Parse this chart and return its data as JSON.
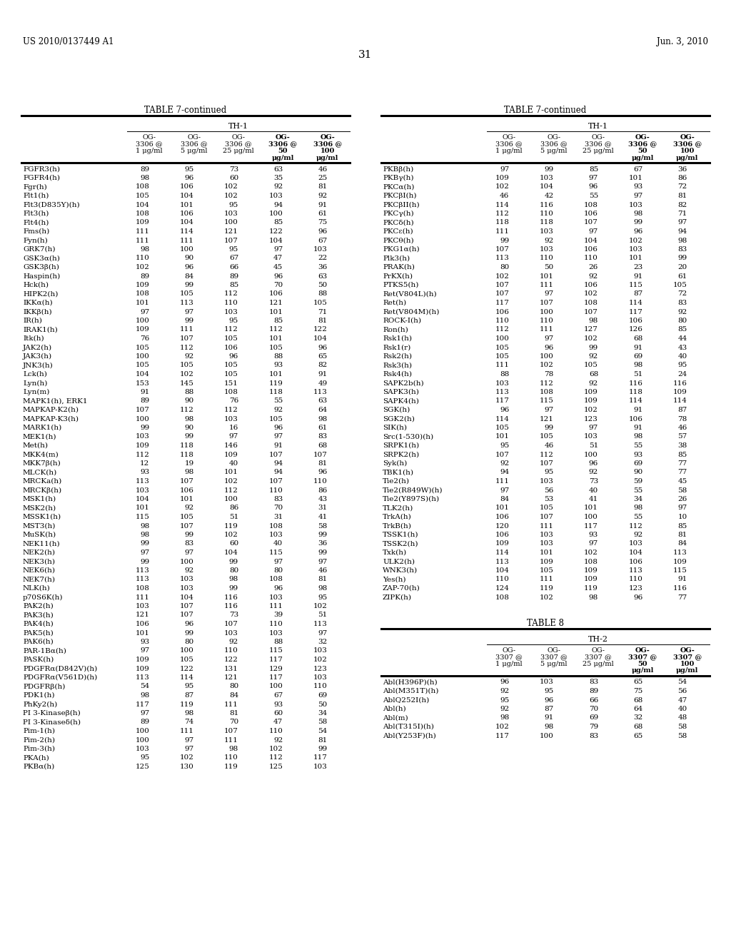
{
  "header_left": "US 2010/0137449 A1",
  "header_right": "Jun. 3, 2010",
  "page_num": "31",
  "table_title": "TABLE 7-continued",
  "table_subtitle": "TH-1",
  "col_headers_line1": [
    "OG-",
    "OG-",
    "OG-",
    "OG-",
    "OG-"
  ],
  "col_headers_line2": [
    "3306 @",
    "3306 @",
    "3306 @",
    "3306 @",
    "3306 @"
  ],
  "col_headers_line3": [
    "1 μg/ml",
    "5 μg/ml",
    "25 μg/ml",
    "50",
    "100"
  ],
  "col_headers_line4": [
    "",
    "",
    "",
    "μg/ml",
    "μg/ml"
  ],
  "col_headers_bold": [
    false,
    false,
    false,
    true,
    true
  ],
  "left_table_data": [
    [
      "FGFR3(h)",
      "89",
      "95",
      "73",
      "63",
      "46"
    ],
    [
      "FGFR4(h)",
      "98",
      "96",
      "60",
      "35",
      "25"
    ],
    [
      "Fgr(h)",
      "108",
      "106",
      "102",
      "92",
      "81"
    ],
    [
      "Flt1(h)",
      "105",
      "104",
      "102",
      "103",
      "92"
    ],
    [
      "Flt3(D835Y)(h)",
      "104",
      "101",
      "95",
      "94",
      "91"
    ],
    [
      "Flt3(h)",
      "108",
      "106",
      "103",
      "100",
      "61"
    ],
    [
      "Flt4(h)",
      "109",
      "104",
      "100",
      "85",
      "75"
    ],
    [
      "Fms(h)",
      "111",
      "114",
      "121",
      "122",
      "96"
    ],
    [
      "Fyn(h)",
      "111",
      "111",
      "107",
      "104",
      "67"
    ],
    [
      "GRK7(h)",
      "98",
      "100",
      "95",
      "97",
      "103"
    ],
    [
      "GSK3α(h)",
      "110",
      "90",
      "67",
      "47",
      "22"
    ],
    [
      "GSK3β(h)",
      "102",
      "96",
      "66",
      "45",
      "36"
    ],
    [
      "Haspin(h)",
      "89",
      "84",
      "89",
      "96",
      "63"
    ],
    [
      "Hck(h)",
      "109",
      "99",
      "85",
      "70",
      "50"
    ],
    [
      "HIPK2(h)",
      "108",
      "105",
      "112",
      "106",
      "88"
    ],
    [
      "IKKα(h)",
      "101",
      "113",
      "110",
      "121",
      "105"
    ],
    [
      "IKKβ(h)",
      "97",
      "97",
      "103",
      "101",
      "71"
    ],
    [
      "IR(h)",
      "100",
      "99",
      "95",
      "85",
      "81"
    ],
    [
      "IRAK1(h)",
      "109",
      "111",
      "112",
      "112",
      "122"
    ],
    [
      "Itk(h)",
      "76",
      "107",
      "105",
      "101",
      "104"
    ],
    [
      "JAK2(h)",
      "105",
      "112",
      "106",
      "105",
      "96"
    ],
    [
      "JAK3(h)",
      "100",
      "92",
      "96",
      "88",
      "65"
    ],
    [
      "JNK3(h)",
      "105",
      "105",
      "105",
      "93",
      "82"
    ],
    [
      "Lck(h)",
      "104",
      "102",
      "105",
      "101",
      "91"
    ],
    [
      "Lyn(h)",
      "153",
      "145",
      "151",
      "119",
      "49"
    ],
    [
      "Lyn(m)",
      "91",
      "88",
      "108",
      "118",
      "113"
    ],
    [
      "MAPK1(h), ERK1",
      "89",
      "90",
      "76",
      "55",
      "63"
    ],
    [
      "MAPKAP-K2(h)",
      "107",
      "112",
      "112",
      "92",
      "64"
    ],
    [
      "MAPKAP-K3(h)",
      "100",
      "98",
      "103",
      "105",
      "98"
    ],
    [
      "MARK1(h)",
      "99",
      "90",
      "16",
      "96",
      "61"
    ],
    [
      "MEK1(h)",
      "103",
      "99",
      "97",
      "97",
      "83"
    ],
    [
      "Met(h)",
      "109",
      "118",
      "146",
      "91",
      "68"
    ],
    [
      "MKK4(m)",
      "112",
      "118",
      "109",
      "107",
      "107"
    ],
    [
      "MKK7β(h)",
      "12",
      "19",
      "40",
      "94",
      "81"
    ],
    [
      "MLCK(h)",
      "93",
      "98",
      "101",
      "94",
      "96"
    ],
    [
      "MRCKa(h)",
      "113",
      "107",
      "102",
      "107",
      "110"
    ],
    [
      "MRCKβ(h)",
      "103",
      "106",
      "112",
      "110",
      "86"
    ],
    [
      "MSK1(h)",
      "104",
      "101",
      "100",
      "83",
      "43"
    ],
    [
      "MSK2(h)",
      "101",
      "92",
      "86",
      "70",
      "31"
    ],
    [
      "MSSK1(h)",
      "115",
      "105",
      "51",
      "31",
      "41"
    ],
    [
      "MST3(h)",
      "98",
      "107",
      "119",
      "108",
      "58"
    ],
    [
      "MuSK(h)",
      "98",
      "99",
      "102",
      "103",
      "99"
    ],
    [
      "NEK11(h)",
      "99",
      "83",
      "60",
      "40",
      "36"
    ],
    [
      "NEK2(h)",
      "97",
      "97",
      "104",
      "115",
      "99"
    ],
    [
      "NEK3(h)",
      "99",
      "100",
      "99",
      "97",
      "97"
    ],
    [
      "NEK6(h)",
      "113",
      "92",
      "80",
      "80",
      "46"
    ],
    [
      "NEK7(h)",
      "113",
      "103",
      "98",
      "108",
      "81"
    ],
    [
      "NLK(h)",
      "108",
      "103",
      "99",
      "96",
      "98"
    ],
    [
      "p70S6K(h)",
      "111",
      "104",
      "116",
      "103",
      "95"
    ],
    [
      "PAK2(h)",
      "103",
      "107",
      "116",
      "111",
      "102"
    ],
    [
      "PAK3(h)",
      "121",
      "107",
      "73",
      "39",
      "51"
    ],
    [
      "PAK4(h)",
      "106",
      "96",
      "107",
      "110",
      "113"
    ],
    [
      "PAK5(h)",
      "101",
      "99",
      "103",
      "103",
      "97"
    ],
    [
      "PAK6(h)",
      "93",
      "80",
      "92",
      "88",
      "32"
    ],
    [
      "PAR-1Bα(h)",
      "97",
      "100",
      "110",
      "115",
      "103"
    ],
    [
      "PASK(h)",
      "109",
      "105",
      "122",
      "117",
      "102"
    ],
    [
      "PDGFRα(D842V)(h)",
      "109",
      "122",
      "131",
      "129",
      "123"
    ],
    [
      "PDGFRα(V561D)(h)",
      "113",
      "114",
      "121",
      "117",
      "103"
    ],
    [
      "PDGFRβ(h)",
      "54",
      "95",
      "80",
      "100",
      "110"
    ],
    [
      "PDK1(h)",
      "98",
      "87",
      "84",
      "67",
      "69"
    ],
    [
      "PhKy2(h)",
      "117",
      "119",
      "111",
      "93",
      "50"
    ],
    [
      "PI 3-Kinaseβ(h)",
      "97",
      "98",
      "81",
      "60",
      "34"
    ],
    [
      "PI 3-Kinaseδ(h)",
      "89",
      "74",
      "70",
      "47",
      "58"
    ],
    [
      "Pim-1(h)",
      "100",
      "111",
      "107",
      "110",
      "54"
    ],
    [
      "Pim-2(h)",
      "100",
      "97",
      "111",
      "92",
      "81"
    ],
    [
      "Pim-3(h)",
      "103",
      "97",
      "98",
      "102",
      "99"
    ],
    [
      "PKA(h)",
      "95",
      "102",
      "110",
      "112",
      "117"
    ],
    [
      "PKBα(h)",
      "125",
      "130",
      "119",
      "125",
      "103"
    ]
  ],
  "right_table_data": [
    [
      "PKBβ(h)",
      "97",
      "99",
      "85",
      "67",
      "36"
    ],
    [
      "PKBγ(h)",
      "109",
      "103",
      "97",
      "101",
      "86"
    ],
    [
      "PKCα(h)",
      "102",
      "104",
      "96",
      "93",
      "72"
    ],
    [
      "PKCβI(h)",
      "46",
      "42",
      "55",
      "97",
      "81"
    ],
    [
      "PKCβII(h)",
      "114",
      "116",
      "108",
      "103",
      "82"
    ],
    [
      "PKCγ(h)",
      "112",
      "110",
      "106",
      "98",
      "71"
    ],
    [
      "PKCδ(h)",
      "118",
      "118",
      "107",
      "99",
      "97"
    ],
    [
      "PKCε(h)",
      "111",
      "103",
      "97",
      "96",
      "94"
    ],
    [
      "PKCθ(h)",
      "99",
      "92",
      "104",
      "102",
      "98"
    ],
    [
      "PKG1α(h)",
      "107",
      "103",
      "106",
      "103",
      "83"
    ],
    [
      "Plk3(h)",
      "113",
      "110",
      "110",
      "101",
      "99"
    ],
    [
      "PRAK(h)",
      "80",
      "50",
      "26",
      "23",
      "20"
    ],
    [
      "PrKX(h)",
      "102",
      "101",
      "92",
      "91",
      "61"
    ],
    [
      "PTKS5(h)",
      "107",
      "111",
      "106",
      "115",
      "105"
    ],
    [
      "Ret(V804L)(h)",
      "107",
      "97",
      "102",
      "87",
      "72"
    ],
    [
      "Ret(h)",
      "117",
      "107",
      "108",
      "114",
      "83"
    ],
    [
      "Ret(V804M)(h)",
      "106",
      "100",
      "107",
      "117",
      "92"
    ],
    [
      "ROCK-I(h)",
      "110",
      "110",
      "98",
      "106",
      "80"
    ],
    [
      "Ron(h)",
      "112",
      "111",
      "127",
      "126",
      "85"
    ],
    [
      "Rsk1(h)",
      "100",
      "97",
      "102",
      "68",
      "44"
    ],
    [
      "Rsk1(r)",
      "105",
      "96",
      "99",
      "91",
      "43"
    ],
    [
      "Rsk2(h)",
      "105",
      "100",
      "92",
      "69",
      "40"
    ],
    [
      "Rsk3(h)",
      "111",
      "102",
      "105",
      "98",
      "95"
    ],
    [
      "Rsk4(h)",
      "88",
      "78",
      "68",
      "51",
      "24"
    ],
    [
      "SAPK2b(h)",
      "103",
      "112",
      "92",
      "116",
      "116"
    ],
    [
      "SAPK3(h)",
      "113",
      "108",
      "109",
      "118",
      "109"
    ],
    [
      "SAPK4(h)",
      "117",
      "115",
      "109",
      "114",
      "114"
    ],
    [
      "SGK(h)",
      "96",
      "97",
      "102",
      "91",
      "87"
    ],
    [
      "SGK2(h)",
      "114",
      "121",
      "123",
      "106",
      "78"
    ],
    [
      "SIK(h)",
      "105",
      "99",
      "97",
      "91",
      "46"
    ],
    [
      "Src(1-530)(h)",
      "101",
      "105",
      "103",
      "98",
      "57"
    ],
    [
      "SRPK1(h)",
      "95",
      "46",
      "51",
      "55",
      "38"
    ],
    [
      "SRPK2(h)",
      "107",
      "112",
      "100",
      "93",
      "85"
    ],
    [
      "Syk(h)",
      "92",
      "107",
      "96",
      "69",
      "77"
    ],
    [
      "TBK1(h)",
      "94",
      "95",
      "92",
      "90",
      "77"
    ],
    [
      "Tie2(h)",
      "111",
      "103",
      "73",
      "59",
      "45"
    ],
    [
      "Tie2(R849W)(h)",
      "97",
      "56",
      "40",
      "55",
      "58"
    ],
    [
      "Tie2(Y897S)(h)",
      "84",
      "53",
      "41",
      "34",
      "26"
    ],
    [
      "TLK2(h)",
      "101",
      "105",
      "101",
      "98",
      "97"
    ],
    [
      "TrkA(h)",
      "106",
      "107",
      "100",
      "55",
      "10"
    ],
    [
      "TrkB(h)",
      "120",
      "111",
      "117",
      "112",
      "85"
    ],
    [
      "TSSK1(h)",
      "106",
      "103",
      "93",
      "92",
      "81"
    ],
    [
      "TSSK2(h)",
      "109",
      "103",
      "97",
      "103",
      "84"
    ],
    [
      "Txk(h)",
      "114",
      "101",
      "102",
      "104",
      "113"
    ],
    [
      "ULK2(h)",
      "113",
      "109",
      "108",
      "106",
      "109"
    ],
    [
      "WNK3(h)",
      "104",
      "105",
      "109",
      "113",
      "115"
    ],
    [
      "Yes(h)",
      "110",
      "111",
      "109",
      "110",
      "91"
    ],
    [
      "ZAP-70(h)",
      "124",
      "119",
      "119",
      "123",
      "116"
    ],
    [
      "ZIPK(h)",
      "108",
      "102",
      "98",
      "96",
      "77"
    ]
  ],
  "table8_title": "TABLE 8",
  "table8_subtitle": "TH-2",
  "table8_col_headers_line1": [
    "OG-",
    "OG-",
    "OG-",
    "OG-",
    "OG-"
  ],
  "table8_col_headers_line2": [
    "3307 @",
    "3307 @",
    "3307 @",
    "3307 @",
    "3307 @"
  ],
  "table8_col_headers_line3": [
    "1 μg/ml",
    "5 μg/ml",
    "25 μg/ml",
    "50",
    "100"
  ],
  "table8_col_headers_line4": [
    "",
    "",
    "",
    "μg/ml",
    "μg/ml"
  ],
  "table8_data": [
    [
      "Abl(H396P)(h)",
      "96",
      "103",
      "83",
      "65",
      "54"
    ],
    [
      "Abl(M351T)(h)",
      "92",
      "95",
      "89",
      "75",
      "56"
    ],
    [
      "AblQ252I(h)",
      "95",
      "96",
      "66",
      "68",
      "47"
    ],
    [
      "Abl(h)",
      "92",
      "87",
      "70",
      "64",
      "40"
    ],
    [
      "Abl(m)",
      "98",
      "91",
      "69",
      "32",
      "48"
    ],
    [
      "Abl(T315I)(h)",
      "102",
      "98",
      "79",
      "68",
      "58"
    ],
    [
      "Abl(Y253F)(h)",
      "117",
      "100",
      "83",
      "65",
      "58"
    ]
  ]
}
